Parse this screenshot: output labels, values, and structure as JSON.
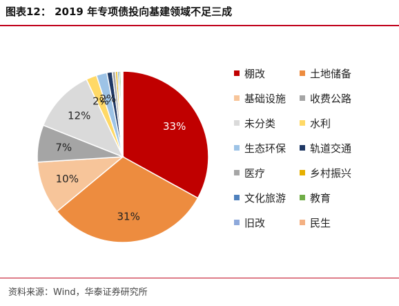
{
  "figure_title": "图表12： 2019 年专项债投向基建领域不足三成",
  "source": "资料来源：Wind，华泰证券研究所",
  "chart_data": {
    "type": "pie",
    "categories": [
      "棚改",
      "土地储备",
      "基础设施",
      "收费公路",
      "未分类",
      "水利",
      "生态环保",
      "轨道交通",
      "医疗",
      "乡村振兴",
      "文化旅游",
      "教育",
      "旧改",
      "民生"
    ],
    "values": [
      33,
      31,
      10,
      7,
      12,
      2,
      2,
      1,
      0.6,
      0.4,
      0.3,
      0.3,
      0.2,
      0.2
    ],
    "value_labels": [
      "33%",
      "31%",
      "10%",
      "7%",
      "12%",
      "2%",
      "2%",
      "",
      "",
      "",
      "",
      "",
      "",
      ""
    ],
    "colors": [
      "#c00000",
      "#ed8c3f",
      "#f7c59a",
      "#a5a5a5",
      "#dadada",
      "#ffd966",
      "#9dc3e6",
      "#1f3864",
      "#a6a6a6",
      "#e6b000",
      "#4f81bd",
      "#70ad47",
      "#8ea9db",
      "#f4b183"
    ],
    "label_colors": [
      "#ffffff",
      "#222222",
      "#222222",
      "#222222",
      "#222222",
      "#222222",
      "#222222",
      "",
      "",
      "",
      "",
      "",
      "",
      ""
    ],
    "legend_placement": "right"
  }
}
